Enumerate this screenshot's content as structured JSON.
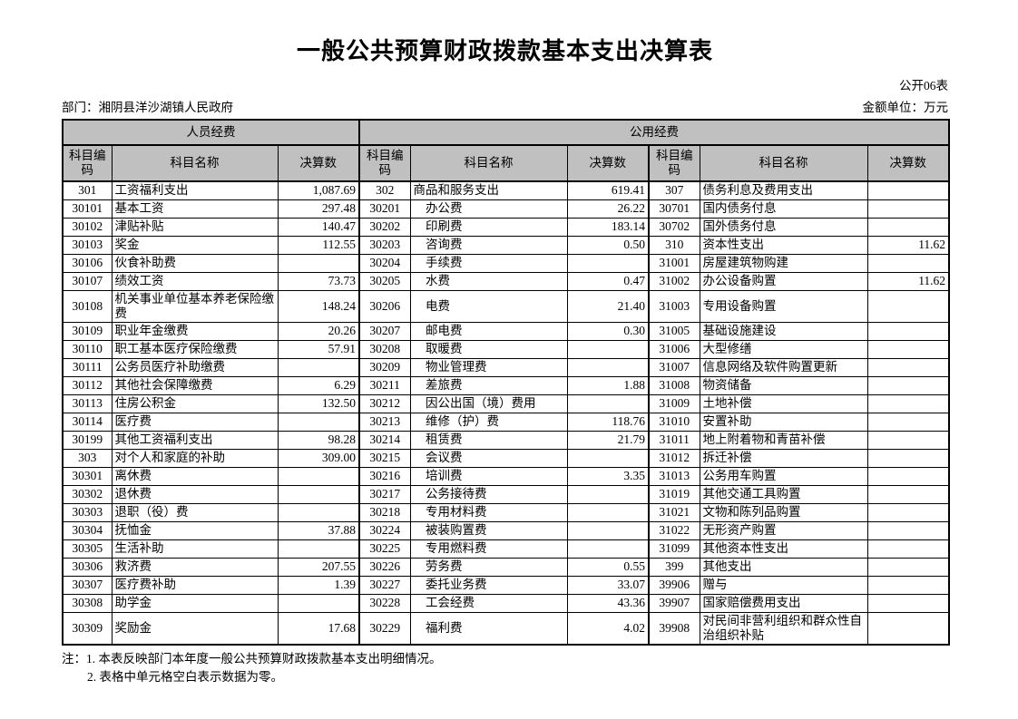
{
  "page": {
    "title": "一般公共预算财政拨款基本支出决算表",
    "sheet_label": "公开06表",
    "department_label": "部门：湘阴县洋沙湖镇人民政府",
    "unit_label": "金额单位：万元"
  },
  "colors": {
    "header_bg": "#c0c0c0",
    "border": "#000000",
    "text": "#000000"
  },
  "table": {
    "group_headers": {
      "personnel": "人员经费",
      "public": "公用经费"
    },
    "column_headers": {
      "code": "科目编码",
      "name": "科目名称",
      "amount": "决算数"
    },
    "rows": [
      [
        "301",
        "工资福利支出",
        "1,087.69",
        "302",
        "商品和服务支出",
        "619.41",
        "307",
        "债务利息及费用支出",
        ""
      ],
      [
        "30101",
        "基本工资",
        "297.48",
        "30201",
        "　办公费",
        "26.22",
        "30701",
        "国内债务付息",
        ""
      ],
      [
        "30102",
        "津贴补贴",
        "140.47",
        "30202",
        "　印刷费",
        "183.14",
        "30702",
        "国外债务付息",
        ""
      ],
      [
        "30103",
        "奖金",
        "112.55",
        "30203",
        "　咨询费",
        "0.50",
        "310",
        "资本性支出",
        "11.62"
      ],
      [
        "30106",
        "伙食补助费",
        "",
        "30204",
        "　手续费",
        "",
        "31001",
        "房屋建筑物购建",
        ""
      ],
      [
        "30107",
        "绩效工资",
        "73.73",
        "30205",
        "　水费",
        "0.47",
        "31002",
        "办公设备购置",
        "11.62"
      ],
      [
        "30108",
        "机关事业单位基本养老保险缴费",
        "148.24",
        "30206",
        "　电费",
        "21.40",
        "31003",
        "专用设备购置",
        ""
      ],
      [
        "30109",
        "职业年金缴费",
        "20.26",
        "30207",
        "　邮电费",
        "0.30",
        "31005",
        "基础设施建设",
        ""
      ],
      [
        "30110",
        "职工基本医疗保险缴费",
        "57.91",
        "30208",
        "　取暖费",
        "",
        "31006",
        "大型修缮",
        ""
      ],
      [
        "30111",
        "公务员医疗补助缴费",
        "",
        "30209",
        "　物业管理费",
        "",
        "31007",
        "信息网络及软件购置更新",
        ""
      ],
      [
        "30112",
        "其他社会保障缴费",
        "6.29",
        "30211",
        "　差旅费",
        "1.88",
        "31008",
        "物资储备",
        ""
      ],
      [
        "30113",
        "住房公积金",
        "132.50",
        "30212",
        "　因公出国（境）费用",
        "",
        "31009",
        "土地补偿",
        ""
      ],
      [
        "30114",
        "医疗费",
        "",
        "30213",
        "　维修（护）费",
        "118.76",
        "31010",
        "安置补助",
        ""
      ],
      [
        "30199",
        "其他工资福利支出",
        "98.28",
        "30214",
        "　租赁费",
        "21.79",
        "31011",
        "地上附着物和青苗补偿",
        ""
      ],
      [
        "303",
        "对个人和家庭的补助",
        "309.00",
        "30215",
        "　会议费",
        "",
        "31012",
        "拆迁补偿",
        ""
      ],
      [
        "30301",
        "离休费",
        "",
        "30216",
        "　培训费",
        "3.35",
        "31013",
        "公务用车购置",
        ""
      ],
      [
        "30302",
        "退休费",
        "",
        "30217",
        "　公务接待费",
        "",
        "31019",
        "其他交通工具购置",
        ""
      ],
      [
        "30303",
        "退职（役）费",
        "",
        "30218",
        "　专用材料费",
        "",
        "31021",
        "文物和陈列品购置",
        ""
      ],
      [
        "30304",
        "抚恤金",
        "37.88",
        "30224",
        "　被装购置费",
        "",
        "31022",
        "无形资产购置",
        ""
      ],
      [
        "30305",
        "生活补助",
        "",
        "30225",
        "　专用燃料费",
        "",
        "31099",
        "其他资本性支出",
        ""
      ],
      [
        "30306",
        "救济费",
        "207.55",
        "30226",
        "　劳务费",
        "0.55",
        "399",
        "其他支出",
        ""
      ],
      [
        "30307",
        "医疗费补助",
        "1.39",
        "30227",
        "　委托业务费",
        "33.07",
        "39906",
        "赠与",
        ""
      ],
      [
        "30308",
        "助学金",
        "",
        "30228",
        "　工会经费",
        "43.36",
        "39907",
        "国家赔偿费用支出",
        ""
      ],
      [
        "30309",
        "奖励金",
        "17.68",
        "30229",
        "　福利费",
        "4.02",
        "39908",
        "对民间非营利组织和群众性自治组织补贴",
        ""
      ]
    ]
  },
  "notes": {
    "prefix": "注：",
    "line1": "1. 本表反映部门本年度一般公共预算财政拨款基本支出明细情况。",
    "line2": "2. 表格中单元格空白表示数据为零。"
  }
}
